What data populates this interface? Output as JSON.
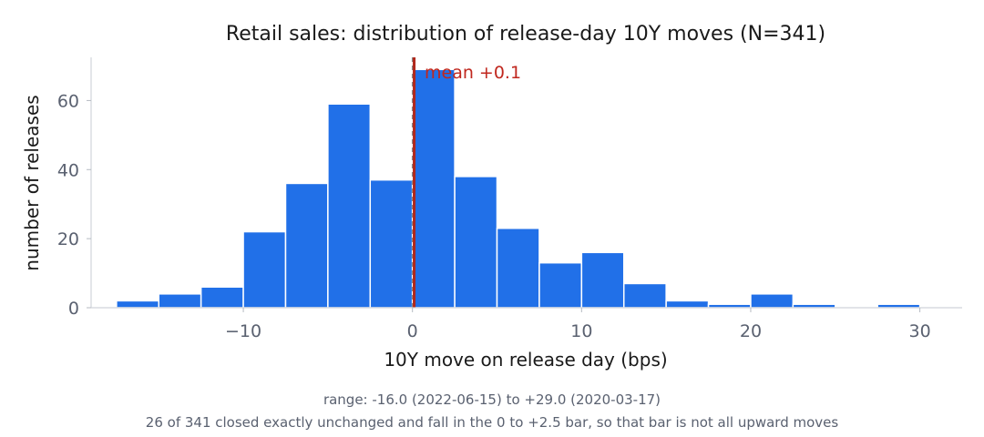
{
  "chart_data": {
    "type": "bar",
    "title": "Retail sales: distribution of release-day 10Y moves (N=341)",
    "xlabel": "10Y move on release day (bps)",
    "ylabel": "number of releases",
    "xlim": [
      -19.0,
      32.5
    ],
    "ylim": [
      0,
      72.5
    ],
    "bin_width": 2.5,
    "bins": [
      {
        "start": -17.5,
        "end": -15.0,
        "count": 2
      },
      {
        "start": -15.0,
        "end": -12.5,
        "count": 4
      },
      {
        "start": -12.5,
        "end": -10.0,
        "count": 6
      },
      {
        "start": -10.0,
        "end": -7.5,
        "count": 22
      },
      {
        "start": -7.5,
        "end": -5.0,
        "count": 36
      },
      {
        "start": -5.0,
        "end": -2.5,
        "count": 59
      },
      {
        "start": -2.5,
        "end": 0.0,
        "count": 37
      },
      {
        "start": 0.0,
        "end": 2.5,
        "count": 69
      },
      {
        "start": 2.5,
        "end": 5.0,
        "count": 38
      },
      {
        "start": 5.0,
        "end": 7.5,
        "count": 23
      },
      {
        "start": 7.5,
        "end": 10.0,
        "count": 13
      },
      {
        "start": 10.0,
        "end": 12.5,
        "count": 16
      },
      {
        "start": 12.5,
        "end": 15.0,
        "count": 7
      },
      {
        "start": 15.0,
        "end": 17.5,
        "count": 2
      },
      {
        "start": 17.5,
        "end": 20.0,
        "count": 1
      },
      {
        "start": 20.0,
        "end": 22.5,
        "count": 4
      },
      {
        "start": 22.5,
        "end": 25.0,
        "count": 1
      },
      {
        "start": 25.0,
        "end": 27.5,
        "count": 0
      },
      {
        "start": 27.5,
        "end": 30.0,
        "count": 1
      }
    ],
    "x_ticks": [
      -10,
      0,
      10,
      20,
      30
    ],
    "x_tick_labels": [
      "−10",
      "0",
      "10",
      "20",
      "30"
    ],
    "y_ticks": [
      0,
      20,
      40,
      60
    ],
    "y_tick_labels": [
      "0",
      "20",
      "40",
      "60"
    ],
    "zero_line": 0,
    "mean": 0.1,
    "mean_label": "mean +0.1",
    "grid": false,
    "colors": {
      "bar": "#2170e8",
      "bar_edge": "#ffffff",
      "mean_line": "#b0281c",
      "zero_line": "#8a8a8a",
      "axis": "#d0d4da"
    }
  },
  "notes": {
    "range": "range: -16.0 (2022-06-15) to +29.0 (2020-03-17)",
    "caveat": "26 of 341 closed exactly unchanged and fall in the 0 to +2.5 bar, so that bar is not all upward moves"
  }
}
